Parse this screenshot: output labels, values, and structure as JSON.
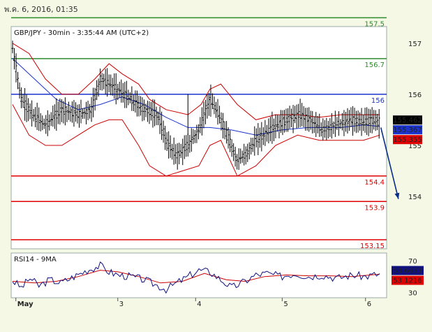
{
  "header": {
    "datetime": "พ.ค. 6, 2016, 01:35"
  },
  "colors": {
    "background": "#f4f8e4",
    "plot_bg": "#ffffff",
    "price": "#000000",
    "bollinger": "#cc0000",
    "ma": "#1a33cc",
    "resistance": "#2e8b2e",
    "pivot": "#1a33cc",
    "support": "#e00000",
    "arrow": "#0b2d8a",
    "rsi": "#101080",
    "rsi_ma": "#cc0000"
  },
  "chart_data": [
    {
      "type": "line",
      "title": "GBP/JPY - 30min - 3:35:44 AM (UTC+2)",
      "ylim": [
        153.0,
        157.3
      ],
      "yticks": [
        "157",
        "156",
        "155",
        "154"
      ],
      "ytick_values": [
        157,
        156,
        155,
        154
      ],
      "xticks": [
        {
          "label": "May",
          "index": 3
        },
        {
          "label": "3",
          "index": 96
        },
        {
          "label": "4",
          "index": 167
        },
        {
          "label": "5",
          "index": 246
        },
        {
          "label": "6",
          "index": 322
        }
      ],
      "bar_count": 340,
      "levels": [
        {
          "value": 157.5,
          "label": "157.5",
          "role": "resistance"
        },
        {
          "value": 156.7,
          "label": "156.7",
          "role": "resistance"
        },
        {
          "value": 156.0,
          "label": "156",
          "role": "pivot"
        },
        {
          "value": 154.4,
          "label": "154.4",
          "role": "support"
        },
        {
          "value": 153.9,
          "label": "153.9",
          "role": "support"
        },
        {
          "value": 153.15,
          "label": "153.15",
          "role": "support"
        }
      ],
      "price_path": [
        [
          0,
          156.9
        ],
        [
          8,
          155.9
        ],
        [
          18,
          155.6
        ],
        [
          30,
          155.4
        ],
        [
          45,
          155.7
        ],
        [
          60,
          155.6
        ],
        [
          72,
          155.7
        ],
        [
          80,
          156.3
        ],
        [
          88,
          156.2
        ],
        [
          96,
          156.1
        ],
        [
          108,
          155.9
        ],
        [
          120,
          155.7
        ],
        [
          132,
          155.6
        ],
        [
          142,
          155.0
        ],
        [
          150,
          154.8
        ],
        [
          160,
          155.0
        ],
        [
          170,
          155.3
        ],
        [
          180,
          155.9
        ],
        [
          188,
          155.6
        ],
        [
          196,
          155.2
        ],
        [
          205,
          154.7
        ],
        [
          212,
          154.8
        ],
        [
          222,
          155.1
        ],
        [
          235,
          155.3
        ],
        [
          250,
          155.5
        ],
        [
          262,
          155.6
        ],
        [
          272,
          155.5
        ],
        [
          282,
          155.3
        ],
        [
          296,
          155.4
        ],
        [
          310,
          155.5
        ],
        [
          320,
          155.45
        ],
        [
          330,
          155.5
        ],
        [
          335,
          155.46
        ]
      ],
      "bollinger_upper_path": [
        [
          0,
          157.0
        ],
        [
          15,
          156.8
        ],
        [
          30,
          156.3
        ],
        [
          45,
          156.0
        ],
        [
          60,
          156.0
        ],
        [
          75,
          156.3
        ],
        [
          88,
          156.6
        ],
        [
          100,
          156.4
        ],
        [
          115,
          156.2
        ],
        [
          125,
          155.9
        ],
        [
          140,
          155.7
        ],
        [
          160,
          155.6
        ],
        [
          172,
          155.8
        ],
        [
          180,
          156.1
        ],
        [
          190,
          156.2
        ],
        [
          205,
          155.8
        ],
        [
          222,
          155.5
        ],
        [
          240,
          155.6
        ],
        [
          260,
          155.6
        ],
        [
          280,
          155.55
        ],
        [
          300,
          155.6
        ],
        [
          320,
          155.6
        ],
        [
          335,
          155.6
        ]
      ],
      "bollinger_lower_path": [
        [
          0,
          155.8
        ],
        [
          15,
          155.2
        ],
        [
          30,
          155.0
        ],
        [
          45,
          155.0
        ],
        [
          60,
          155.2
        ],
        [
          75,
          155.4
        ],
        [
          88,
          155.5
        ],
        [
          100,
          155.5
        ],
        [
          115,
          155.0
        ],
        [
          125,
          154.6
        ],
        [
          140,
          154.4
        ],
        [
          155,
          154.5
        ],
        [
          170,
          154.6
        ],
        [
          180,
          155.0
        ],
        [
          190,
          155.1
        ],
        [
          205,
          154.4
        ],
        [
          222,
          154.6
        ],
        [
          240,
          155.0
        ],
        [
          260,
          155.2
        ],
        [
          280,
          155.1
        ],
        [
          300,
          155.1
        ],
        [
          320,
          155.1
        ],
        [
          335,
          155.2
        ]
      ],
      "ma_path": [
        [
          0,
          156.7
        ],
        [
          20,
          156.3
        ],
        [
          40,
          155.9
        ],
        [
          60,
          155.7
        ],
        [
          80,
          155.8
        ],
        [
          100,
          155.95
        ],
        [
          120,
          155.8
        ],
        [
          140,
          155.55
        ],
        [
          160,
          155.35
        ],
        [
          180,
          155.35
        ],
        [
          200,
          155.3
        ],
        [
          222,
          155.2
        ],
        [
          245,
          155.3
        ],
        [
          270,
          155.35
        ],
        [
          300,
          155.35
        ],
        [
          320,
          155.4
        ],
        [
          335,
          155.37
        ]
      ],
      "forecast_arrow": {
        "from_index": 336,
        "from_value": 155.35,
        "to_index": 352,
        "to_value": 153.95
      },
      "value_tags": [
        {
          "label": "155.462",
          "value": 155.462,
          "bg": "#000000",
          "fg": "#ffffff"
        },
        {
          "label": "155.367",
          "value": 155.367,
          "bg": "#1a33cc",
          "fg": "#ffffff"
        },
        {
          "label": "155.355",
          "value": 155.355,
          "bg": "#e00000",
          "fg": "#ffffff"
        }
      ]
    },
    {
      "type": "line",
      "title": "RSI14 - 9MA",
      "ylim": [
        25,
        78
      ],
      "yticks": [
        "70",
        "30"
      ],
      "ytick_values": [
        70,
        30
      ],
      "rsi_path": [
        [
          0,
          45
        ],
        [
          8,
          36
        ],
        [
          16,
          48
        ],
        [
          24,
          38
        ],
        [
          34,
          46
        ],
        [
          44,
          42
        ],
        [
          56,
          50
        ],
        [
          68,
          58
        ],
        [
          80,
          64
        ],
        [
          88,
          56
        ],
        [
          96,
          52
        ],
        [
          108,
          50
        ],
        [
          120,
          46
        ],
        [
          130,
          40
        ],
        [
          140,
          34
        ],
        [
          150,
          42
        ],
        [
          160,
          50
        ],
        [
          170,
          58
        ],
        [
          180,
          56
        ],
        [
          190,
          46
        ],
        [
          200,
          36
        ],
        [
          212,
          44
        ],
        [
          222,
          52
        ],
        [
          232,
          54
        ],
        [
          245,
          50
        ],
        [
          258,
          54
        ],
        [
          270,
          50
        ],
        [
          282,
          52
        ],
        [
          296,
          48
        ],
        [
          310,
          52
        ],
        [
          322,
          50
        ],
        [
          335,
          53.7
        ]
      ],
      "rsi_ma_path": [
        [
          0,
          44
        ],
        [
          20,
          42
        ],
        [
          40,
          44
        ],
        [
          60,
          50
        ],
        [
          80,
          58
        ],
        [
          96,
          56
        ],
        [
          115,
          50
        ],
        [
          135,
          42
        ],
        [
          155,
          44
        ],
        [
          175,
          54
        ],
        [
          195,
          46
        ],
        [
          212,
          44
        ],
        [
          230,
          50
        ],
        [
          250,
          52
        ],
        [
          270,
          51
        ],
        [
          290,
          51
        ],
        [
          310,
          50
        ],
        [
          335,
          53.1
        ]
      ],
      "value_tags": [
        {
          "label": "53.6653",
          "value": 53.6653,
          "bg": "#101080",
          "fg": "#ffffff"
        },
        {
          "label": "53.1216",
          "value": 53.1216,
          "bg": "#e00000",
          "fg": "#ffffff"
        }
      ]
    }
  ]
}
